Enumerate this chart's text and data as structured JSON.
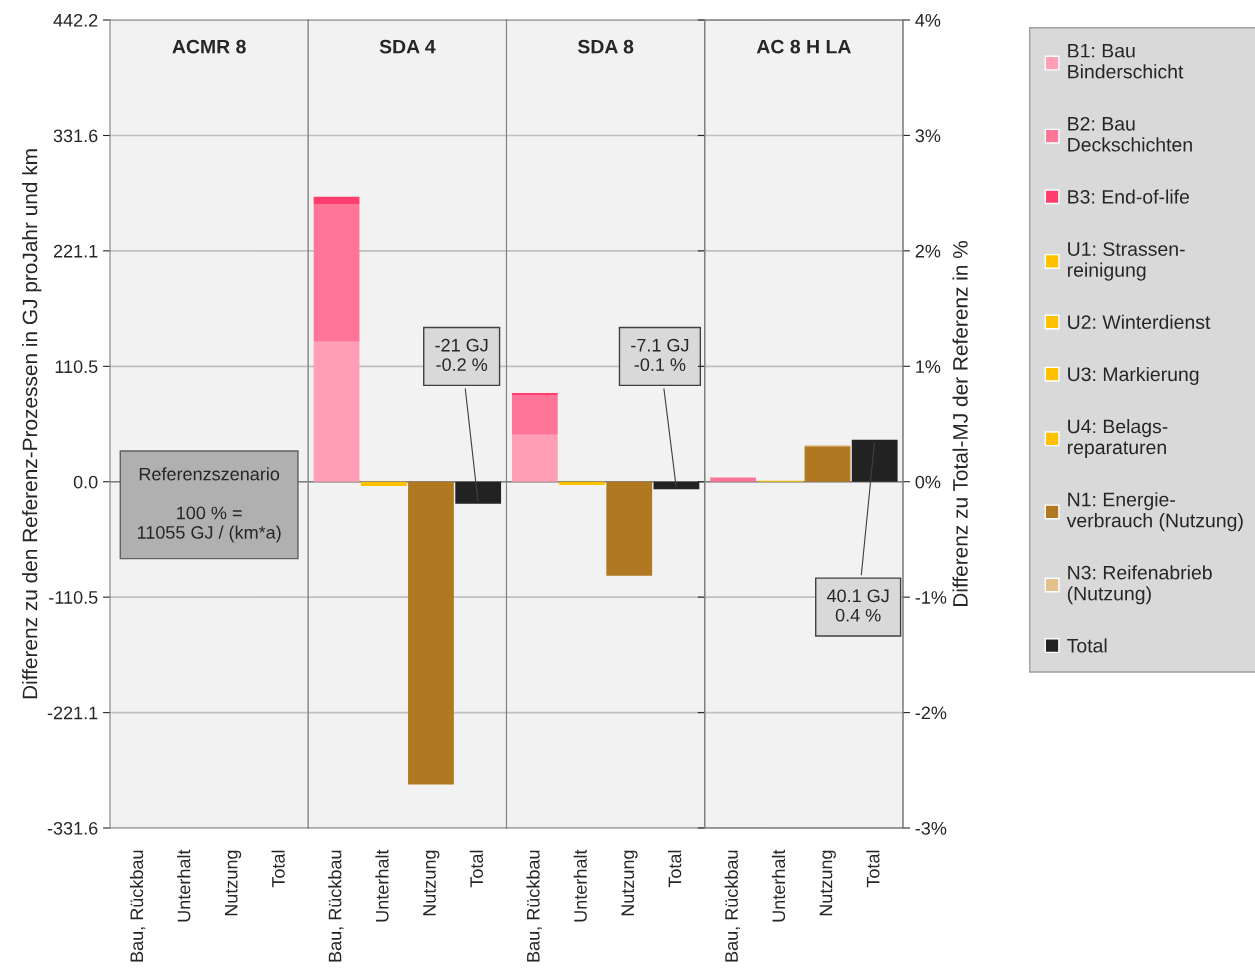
{
  "chart_data": [
    {
      "type": "bar",
      "title": "ACMR 8",
      "ylabel": "Differenz zu den Referenz-Prozessen in GJ proJahr und km",
      "grid": "y",
      "categories": [
        "Bau, Rückbau",
        "Unterhalt",
        "Nutzung",
        "Total"
      ],
      "ylim": [
        -331.6,
        442.2
      ],
      "yticks": [
        -331.6,
        -221.1,
        -110.5,
        {
          "value": 0,
          "label": "0.0"
        },
        110.5,
        221.1,
        331.6,
        442.2
      ],
      "annotations": [
        "Referenzszenario\n\n100 % =\n11055 GJ / (km*a)"
      ]
    },
    {
      "type": "bar",
      "title": "SDA 4",
      "stacked": true,
      "grid": "y",
      "tick_labels": "x",
      "categories": [
        "Bau, Rückbau",
        "Unterhalt",
        "Nutzung",
        "Total"
      ],
      "ylim": [
        -331.6,
        442.2
      ],
      "yticks": [
        -331.6,
        -221.1,
        -110.5,
        0,
        110.5,
        221.1,
        331.6,
        442.2
      ],
      "series": [
        {
          "color": "#ff9eb5",
          "values": [
            134,
            null,
            null,
            null
          ]
        },
        {
          "color": "#ff7597",
          "values": [
            132,
            null,
            null,
            null
          ]
        },
        {
          "color": "#ff3d6e",
          "values": [
            7,
            null,
            null,
            null
          ]
        },
        {
          "color": "#ffc000",
          "values": [
            null,
            -4,
            null,
            null
          ]
        },
        {
          "color": "#b07820",
          "values": [
            null,
            null,
            -290,
            null
          ]
        },
        {
          "color": "#222222",
          "values": [
            null,
            null,
            null,
            -21
          ]
        }
      ],
      "annotations": [
        {
          "text": "-21 GJ\n-0.2 %",
          "x": "Total",
          "y": -21
        }
      ]
    },
    {
      "type": "bar",
      "title": "SDA 8",
      "stacked": true,
      "grid": "y",
      "tick_labels": "x",
      "categories": [
        "Bau, Rückbau",
        "Unterhalt",
        "Nutzung",
        "Total"
      ],
      "ylim": [
        -331.6,
        442.2
      ],
      "yticks": [
        -331.6,
        -221.1,
        -110.5,
        0,
        110.5,
        221.1,
        331.6,
        442.2
      ],
      "series": [
        {
          "color": "#ff9eb5",
          "values": [
            45,
            null,
            null,
            null
          ]
        },
        {
          "color": "#ff7597",
          "values": [
            38,
            null,
            null,
            null
          ]
        },
        {
          "color": "#ff3d6e",
          "values": [
            2,
            null,
            null,
            null
          ]
        },
        {
          "color": "#ffc000",
          "values": [
            null,
            -3,
            null,
            null
          ]
        },
        {
          "color": "#b07820",
          "values": [
            null,
            null,
            -90,
            null
          ]
        },
        {
          "color": "#222222",
          "values": [
            null,
            null,
            null,
            -7.1
          ]
        }
      ],
      "annotations": [
        {
          "text": "-7.1 GJ\n-0.1 %",
          "x": "Total",
          "y": -7.1
        }
      ]
    },
    {
      "type": "bar",
      "title": "AC 8 H LA",
      "stacked": true,
      "grid": "y",
      "legend": "right",
      "tick_labels": "x",
      "y2label": "Differenz zu Total-MJ der Referenz in %",
      "categories": [
        "Bau, Rückbau",
        "Unterhalt",
        "Nutzung",
        "Total"
      ],
      "ylim": [
        -331.6,
        442.2
      ],
      "yticks": [
        -331.6,
        -221.1,
        -110.5,
        0,
        110.5,
        221.1,
        331.6,
        442.2
      ],
      "y2lim": [
        -3,
        4
      ],
      "y2ticks": [
        {
          "value": -3,
          "label": "-3%"
        },
        {
          "value": -2,
          "label": "-2%"
        },
        {
          "value": -1,
          "label": "-1%"
        },
        {
          "value": 0,
          "label": "0%"
        },
        {
          "value": 1,
          "label": "1%"
        },
        {
          "value": 2,
          "label": "2%"
        },
        {
          "value": 3,
          "label": "3%"
        },
        {
          "value": 4,
          "label": "4%"
        }
      ],
      "series": [
        {
          "name": "B1: Bau\nBinderschicht",
          "color": "#ff9eb5",
          "values": [
            null,
            null,
            null,
            null
          ]
        },
        {
          "name": "B2: Bau\nDeckschichten",
          "color": "#ff7597",
          "values": [
            4,
            null,
            null,
            null
          ]
        },
        {
          "name": "B3: End-of-life",
          "color": "#ff3d6e",
          "values": [
            null,
            null,
            null,
            null
          ]
        },
        {
          "name": "U1: Strassen-\nreinigung",
          "color": "#ffc000",
          "values": [
            null,
            1,
            null,
            null
          ]
        },
        {
          "name": "U2: Winterdienst",
          "color": "#ffc000",
          "values": [
            null,
            null,
            null,
            null
          ]
        },
        {
          "name": "U3: Markierung",
          "color": "#ffc000",
          "values": [
            null,
            null,
            null,
            null
          ]
        },
        {
          "name": "U4: Belags-\nreparaturen",
          "color": "#ffc000",
          "values": [
            null,
            null,
            null,
            null
          ]
        },
        {
          "name": "N1: Energie-\nverbrauch (Nutzung)",
          "color": "#b07820",
          "values": [
            null,
            null,
            34,
            null
          ]
        },
        {
          "name": "N3: Reifenabrieb\n(Nutzung)",
          "color": "#e6c08a",
          "values": [
            null,
            null,
            1,
            null
          ]
        },
        {
          "name": "Total",
          "color": "#222222",
          "values": [
            null,
            null,
            null,
            40.1
          ]
        }
      ],
      "annotations": [
        {
          "text": "40.1 GJ\n0.4 %",
          "x": "Total",
          "y": 40.1
        }
      ]
    }
  ]
}
